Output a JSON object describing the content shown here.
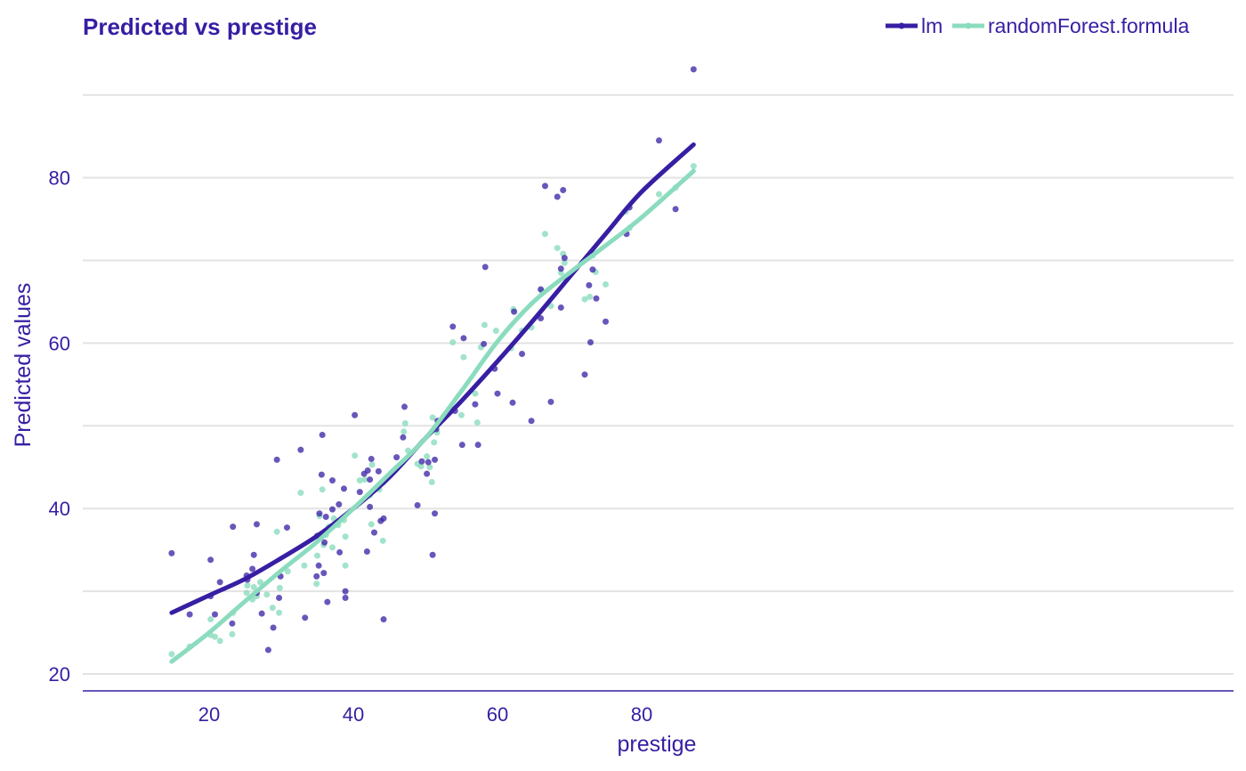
{
  "chart_data": {
    "type": "scatter",
    "title": "Predicted vs prestige",
    "xlabel": "prestige",
    "ylabel": "Predicted values",
    "xlim": [
      11,
      91
    ],
    "ylim": [
      18,
      93
    ],
    "x_ticks": [
      20,
      40,
      60,
      80
    ],
    "y_ticks": [
      20,
      40,
      60,
      80
    ],
    "grid": "horizontal",
    "legend_position": "top-right",
    "series": [
      {
        "name": "lm",
        "color": "#371ea3",
        "trend": [
          [
            14.8,
            27.4
          ],
          [
            20,
            29.5
          ],
          [
            25,
            31.5
          ],
          [
            30,
            34
          ],
          [
            35,
            36.7
          ],
          [
            40,
            40
          ],
          [
            45,
            43.8
          ],
          [
            50,
            48.5
          ],
          [
            55,
            53
          ],
          [
            60,
            57.8
          ],
          [
            65,
            62.8
          ],
          [
            70,
            68
          ],
          [
            75,
            73.2
          ],
          [
            80,
            78.3
          ],
          [
            87.2,
            84
          ]
        ],
        "points": [
          [
            14.8,
            34.6
          ],
          [
            17.3,
            27.2
          ],
          [
            20.2,
            33.8
          ],
          [
            20.2,
            29.4
          ],
          [
            20.8,
            27.2
          ],
          [
            21.5,
            31.1
          ],
          [
            23.3,
            37.8
          ],
          [
            23.2,
            26.1
          ],
          [
            25.2,
            31.9
          ],
          [
            25.3,
            31.4
          ],
          [
            26.0,
            32.7
          ],
          [
            26.2,
            34.4
          ],
          [
            26.6,
            38.1
          ],
          [
            26.6,
            29.8
          ],
          [
            27.3,
            27.3
          ],
          [
            28.2,
            22.9
          ],
          [
            28.9,
            25.6
          ],
          [
            29.4,
            45.9
          ],
          [
            29.7,
            29.2
          ],
          [
            29.9,
            31.8
          ],
          [
            30.8,
            37.7
          ],
          [
            32.7,
            47.1
          ],
          [
            33.3,
            26.8
          ],
          [
            34.9,
            31.8
          ],
          [
            35.0,
            36.7
          ],
          [
            35.2,
            33.1
          ],
          [
            35.3,
            39.4
          ],
          [
            35.6,
            44.1
          ],
          [
            35.7,
            48.9
          ],
          [
            35.9,
            32.2
          ],
          [
            36.0,
            35.9
          ],
          [
            36.2,
            39.0
          ],
          [
            36.4,
            28.7
          ],
          [
            37.1,
            43.4
          ],
          [
            37.1,
            39.9
          ],
          [
            38.0,
            40.5
          ],
          [
            38.1,
            34.7
          ],
          [
            38.7,
            42.4
          ],
          [
            38.9,
            30.0
          ],
          [
            38.9,
            29.2
          ],
          [
            40.2,
            51.3
          ],
          [
            40.9,
            42.0
          ],
          [
            41.5,
            44.2
          ],
          [
            41.9,
            34.8
          ],
          [
            42.0,
            44.6
          ],
          [
            42.3,
            40.2
          ],
          [
            42.5,
            46.0
          ],
          [
            42.3,
            43.5
          ],
          [
            42.9,
            37.1
          ],
          [
            43.5,
            44.5
          ],
          [
            43.8,
            38.5
          ],
          [
            44.2,
            38.8
          ],
          [
            44.2,
            26.6
          ],
          [
            46.0,
            46.2
          ],
          [
            46.9,
            48.6
          ],
          [
            47.1,
            52.3
          ],
          [
            48.9,
            40.4
          ],
          [
            49.5,
            45.7
          ],
          [
            50.2,
            44.2
          ],
          [
            50.4,
            45.6
          ],
          [
            51.0,
            34.4
          ],
          [
            51.3,
            39.4
          ],
          [
            51.3,
            45.9
          ],
          [
            51.5,
            49.6
          ],
          [
            51.7,
            50.6
          ],
          [
            53.8,
            62.0
          ],
          [
            54.1,
            51.8
          ],
          [
            55.1,
            47.7
          ],
          [
            55.3,
            60.6
          ],
          [
            56.9,
            52.6
          ],
          [
            57.3,
            47.7
          ],
          [
            58.1,
            59.9
          ],
          [
            58.3,
            69.2
          ],
          [
            59.6,
            56.9
          ],
          [
            60.0,
            53.9
          ],
          [
            62.1,
            52.8
          ],
          [
            62.3,
            63.8
          ],
          [
            63.4,
            58.7
          ],
          [
            64.7,
            50.6
          ],
          [
            66.0,
            66.5
          ],
          [
            66.0,
            63.0
          ],
          [
            66.6,
            79.0
          ],
          [
            67.4,
            52.9
          ],
          [
            68.3,
            77.7
          ],
          [
            68.8,
            64.3
          ],
          [
            68.8,
            69.0
          ],
          [
            69.1,
            78.5
          ],
          [
            69.3,
            70.3
          ],
          [
            72.1,
            56.2
          ],
          [
            72.7,
            67.0
          ],
          [
            72.9,
            60.1
          ],
          [
            73.2,
            68.9
          ],
          [
            73.7,
            65.4
          ],
          [
            75.0,
            62.6
          ],
          [
            77.9,
            73.2
          ],
          [
            78.3,
            76.4
          ],
          [
            82.4,
            84.5
          ],
          [
            84.7,
            76.2
          ],
          [
            87.2,
            93.1
          ]
        ]
      },
      {
        "name": "randomForest.formula",
        "color": "#8bdcbe",
        "trend": [
          [
            14.8,
            21.5
          ],
          [
            20,
            25
          ],
          [
            25,
            28.8
          ],
          [
            30,
            32.5
          ],
          [
            35,
            36
          ],
          [
            40,
            40
          ],
          [
            45,
            44.2
          ],
          [
            50,
            48.5
          ],
          [
            55,
            54.2
          ],
          [
            60,
            60.2
          ],
          [
            65,
            65
          ],
          [
            70,
            68.5
          ],
          [
            75,
            71.8
          ],
          [
            80,
            75.2
          ],
          [
            87.2,
            80.8
          ]
        ],
        "points": [
          [
            14.8,
            22.4
          ],
          [
            17.3,
            23.3
          ],
          [
            20.2,
            26.6
          ],
          [
            20.2,
            24.7
          ],
          [
            20.8,
            24.5
          ],
          [
            21.5,
            24.0
          ],
          [
            23.3,
            27.4
          ],
          [
            23.2,
            24.8
          ],
          [
            25.2,
            29.8
          ],
          [
            25.3,
            30.7
          ],
          [
            26.0,
            29.0
          ],
          [
            26.2,
            30.5
          ],
          [
            26.6,
            29.4
          ],
          [
            27.1,
            31.1
          ],
          [
            28.0,
            29.6
          ],
          [
            28.8,
            28.0
          ],
          [
            29.4,
            37.2
          ],
          [
            29.7,
            27.4
          ],
          [
            29.8,
            30.4
          ],
          [
            30.9,
            32.4
          ],
          [
            32.7,
            41.9
          ],
          [
            33.2,
            33.1
          ],
          [
            34.9,
            30.9
          ],
          [
            35.0,
            34.3
          ],
          [
            35.3,
            39.1
          ],
          [
            35.7,
            42.3
          ],
          [
            35.9,
            35.6
          ],
          [
            36.2,
            36.8
          ],
          [
            36.6,
            37.8
          ],
          [
            37.1,
            35.3
          ],
          [
            37.3,
            38.8
          ],
          [
            37.9,
            38.0
          ],
          [
            38.7,
            38.6
          ],
          [
            38.9,
            36.6
          ],
          [
            38.9,
            33.1
          ],
          [
            40.2,
            46.4
          ],
          [
            40.9,
            43.4
          ],
          [
            41.6,
            43.5
          ],
          [
            42.3,
            41.6
          ],
          [
            42.6,
            45.3
          ],
          [
            42.5,
            38.1
          ],
          [
            42.8,
            42.2
          ],
          [
            43.6,
            42.3
          ],
          [
            44.2,
            43.2
          ],
          [
            44.1,
            36.1
          ],
          [
            46.0,
            44.8
          ],
          [
            47.0,
            49.3
          ],
          [
            47.2,
            50.3
          ],
          [
            47.6,
            47.0
          ],
          [
            48.9,
            45.4
          ],
          [
            49.4,
            45.1
          ],
          [
            50.2,
            46.3
          ],
          [
            50.6,
            45.0
          ],
          [
            50.9,
            43.2
          ],
          [
            51.0,
            51.0
          ],
          [
            51.2,
            48.0
          ],
          [
            51.6,
            49.2
          ],
          [
            53.8,
            60.1
          ],
          [
            55.0,
            51.3
          ],
          [
            55.3,
            58.3
          ],
          [
            56.9,
            53.9
          ],
          [
            57.2,
            50.4
          ],
          [
            57.7,
            59.5
          ],
          [
            58.2,
            62.2
          ],
          [
            59.8,
            61.5
          ],
          [
            61.9,
            59.4
          ],
          [
            62.2,
            64.1
          ],
          [
            63.4,
            61.5
          ],
          [
            64.7,
            61.9
          ],
          [
            66.2,
            66.3
          ],
          [
            66.6,
            73.2
          ],
          [
            67.4,
            64.5
          ],
          [
            68.3,
            71.5
          ],
          [
            68.8,
            68.5
          ],
          [
            69.1,
            70.8
          ],
          [
            69.3,
            69.7
          ],
          [
            72.1,
            65.3
          ],
          [
            72.8,
            65.6
          ],
          [
            73.2,
            70.6
          ],
          [
            73.6,
            68.6
          ],
          [
            75.0,
            67.1
          ],
          [
            77.8,
            75.9
          ],
          [
            78.3,
            73.9
          ],
          [
            82.4,
            78.0
          ],
          [
            84.7,
            78.8
          ],
          [
            87.2,
            81.4
          ]
        ]
      }
    ]
  }
}
